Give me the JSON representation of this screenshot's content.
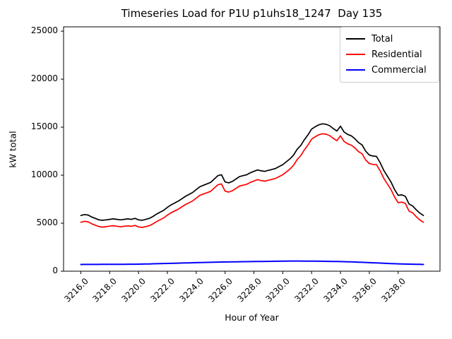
{
  "window": {
    "background": "#ffffff"
  },
  "chart_data": {
    "type": "line",
    "title": "Timeseries Load for P1U p1uhs18_1247  Day 135",
    "xlabel": "Hour of Year",
    "ylabel": "kW total",
    "xlim": [
      3214.8,
      3240.9
    ],
    "ylim": [
      0,
      25450
    ],
    "grid": false,
    "legend_position": "upper right",
    "xticks": [
      3216,
      3218,
      3220,
      3222,
      3224,
      3226,
      3228,
      3230,
      3232,
      3234,
      3236,
      3238
    ],
    "xticklabels": [
      "3216.0",
      "3218.0",
      "3220.0",
      "3222.0",
      "3224.0",
      "3226.0",
      "3228.0",
      "3230.0",
      "3232.0",
      "3234.0",
      "3236.0",
      "3238.0"
    ],
    "yticks": [
      0,
      5000,
      10000,
      15000,
      20000,
      25000
    ],
    "yticklabels": [
      "0",
      "5000",
      "10000",
      "15000",
      "20000",
      "25000"
    ],
    "x": [
      3216.0,
      3216.25,
      3216.5,
      3216.75,
      3217.0,
      3217.25,
      3217.5,
      3217.75,
      3218.0,
      3218.25,
      3218.5,
      3218.75,
      3219.0,
      3219.25,
      3219.5,
      3219.75,
      3220.0,
      3220.25,
      3220.5,
      3220.75,
      3221.0,
      3221.25,
      3221.5,
      3221.75,
      3222.0,
      3222.25,
      3222.5,
      3222.75,
      3223.0,
      3223.25,
      3223.5,
      3223.75,
      3224.0,
      3224.25,
      3224.5,
      3224.75,
      3225.0,
      3225.25,
      3225.5,
      3225.75,
      3226.0,
      3226.25,
      3226.5,
      3226.75,
      3227.0,
      3227.25,
      3227.5,
      3227.75,
      3228.0,
      3228.25,
      3228.5,
      3228.75,
      3229.0,
      3229.25,
      3229.5,
      3229.75,
      3230.0,
      3230.25,
      3230.5,
      3230.75,
      3231.0,
      3231.25,
      3231.5,
      3231.75,
      3232.0,
      3232.25,
      3232.5,
      3232.75,
      3233.0,
      3233.25,
      3233.5,
      3233.75,
      3234.0,
      3234.25,
      3234.5,
      3234.75,
      3235.0,
      3235.25,
      3235.5,
      3235.75,
      3236.0,
      3236.25,
      3236.5,
      3236.75,
      3237.0,
      3237.25,
      3237.5,
      3237.75,
      3238.0,
      3238.25,
      3238.5,
      3238.75,
      3239.0,
      3239.25,
      3239.5,
      3239.75
    ],
    "series": [
      {
        "name": "Total",
        "color": "#000000",
        "line_width": 1.7,
        "values": [
          5800,
          5900,
          5850,
          5650,
          5500,
          5350,
          5300,
          5350,
          5400,
          5450,
          5400,
          5350,
          5400,
          5450,
          5400,
          5500,
          5350,
          5300,
          5400,
          5500,
          5700,
          5950,
          6150,
          6350,
          6650,
          6900,
          7100,
          7300,
          7550,
          7800,
          8000,
          8200,
          8500,
          8800,
          8950,
          9100,
          9250,
          9600,
          9950,
          10050,
          9300,
          9200,
          9350,
          9600,
          9850,
          9950,
          10050,
          10250,
          10400,
          10550,
          10450,
          10400,
          10500,
          10600,
          10700,
          10900,
          11100,
          11400,
          11700,
          12100,
          12700,
          13100,
          13700,
          14200,
          14800,
          15050,
          15250,
          15350,
          15300,
          15150,
          14850,
          14600,
          15100,
          14500,
          14250,
          14100,
          13800,
          13400,
          13150,
          12500,
          12100,
          12000,
          11950,
          11300,
          10500,
          9900,
          9300,
          8500,
          7900,
          7950,
          7800,
          7000,
          6800,
          6400,
          6050,
          5800
        ]
      },
      {
        "name": "Residential",
        "color": "#ff0000",
        "line_width": 1.7,
        "values": [
          5100,
          5195,
          5145,
          4945,
          4795,
          4645,
          4590,
          4640,
          4690,
          4735,
          4685,
          4630,
          4680,
          4725,
          4675,
          4770,
          4615,
          4560,
          4650,
          4740,
          4930,
          5170,
          5360,
          5550,
          5840,
          6080,
          6270,
          6460,
          6700,
          6940,
          7130,
          7320,
          7610,
          7900,
          8040,
          8180,
          8320,
          8660,
          9000,
          9095,
          8340,
          8235,
          8380,
          8620,
          8865,
          8960,
          9055,
          9250,
          9395,
          9540,
          9435,
          9380,
          9475,
          9570,
          9665,
          9860,
          10050,
          10345,
          10640,
          11040,
          11640,
          12040,
          12645,
          13145,
          13750,
          14005,
          14210,
          14315,
          14270,
          14125,
          13835,
          13590,
          14100,
          13510,
          13270,
          13130,
          12845,
          12460,
          12225,
          11590,
          11210,
          11125,
          11090,
          10455,
          9675,
          9090,
          8505,
          7720,
          7135,
          7195,
          7055,
          6265,
          6075,
          5685,
          5340,
          5100
        ]
      },
      {
        "name": "Commercial",
        "color": "#0000ff",
        "line_width": 2.0,
        "values": [
          700,
          705,
          705,
          705,
          705,
          705,
          710,
          710,
          710,
          715,
          715,
          720,
          720,
          725,
          725,
          730,
          735,
          740,
          750,
          760,
          770,
          780,
          790,
          800,
          810,
          820,
          830,
          840,
          850,
          860,
          870,
          880,
          890,
          900,
          910,
          920,
          930,
          940,
          950,
          955,
          960,
          965,
          970,
          980,
          985,
          990,
          995,
          1000,
          1005,
          1010,
          1015,
          1020,
          1025,
          1030,
          1035,
          1040,
          1050,
          1055,
          1060,
          1060,
          1060,
          1060,
          1055,
          1055,
          1050,
          1045,
          1040,
          1035,
          1030,
          1025,
          1015,
          1010,
          1000,
          990,
          980,
          970,
          955,
          940,
          925,
          910,
          890,
          875,
          860,
          845,
          825,
          810,
          795,
          780,
          765,
          755,
          745,
          735,
          725,
          715,
          710,
          700
        ]
      }
    ]
  }
}
